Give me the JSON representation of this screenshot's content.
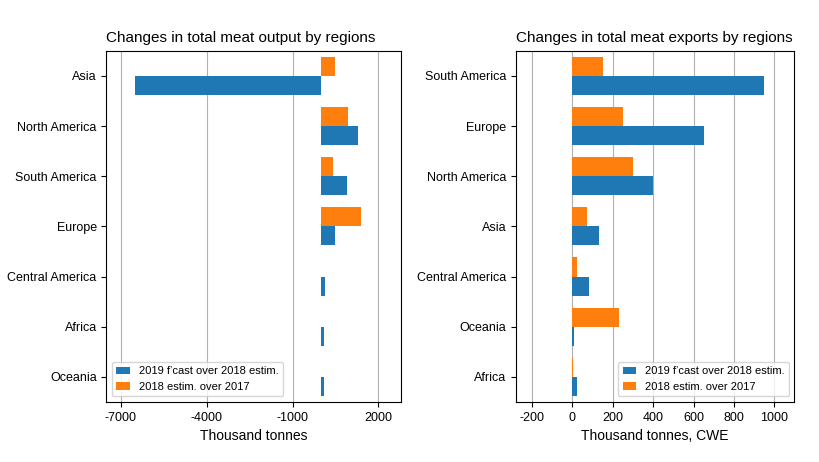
{
  "chart_data": [
    {
      "type": "bar",
      "orientation": "horizontal",
      "title": "Changes in total meat output by regions",
      "xlabel": "Thousand tonnes",
      "categories": [
        "Asia",
        "North America",
        "South America",
        "Europe",
        "Central America",
        "Africa",
        "Oceania"
      ],
      "series": [
        {
          "name": "2019 fʼcast over 2018 estim.",
          "values": [
            -6500,
            1300,
            900,
            500,
            150,
            100,
            100
          ]
        },
        {
          "name": "2018 estim. over 2017",
          "values": [
            500,
            950,
            400,
            1400,
            0,
            0,
            0
          ]
        }
      ],
      "xlim": [
        -7500,
        2800
      ],
      "xticks": [
        -7000,
        -4000,
        -1000,
        2000
      ],
      "grid": true,
      "legend": "lower left"
    },
    {
      "type": "bar",
      "orientation": "horizontal",
      "title": "Changes in total meat exports by regions",
      "xlabel": "Thousand tonnes, CWE",
      "categories": [
        "South America",
        "Europe",
        "North America",
        "Asia",
        "Central America",
        "Oceania",
        "Africa"
      ],
      "series": [
        {
          "name": "2019 fʼcast over 2018 estim.",
          "values": [
            950,
            650,
            400,
            130,
            80,
            10,
            20
          ]
        },
        {
          "name": "2018 estim. over 2017",
          "values": [
            150,
            250,
            300,
            70,
            20,
            230,
            5
          ]
        }
      ],
      "xlim": [
        -280,
        1100
      ],
      "xticks": [
        -200,
        0,
        200,
        400,
        600,
        800,
        1000
      ],
      "grid": true,
      "legend": "lower right"
    }
  ]
}
